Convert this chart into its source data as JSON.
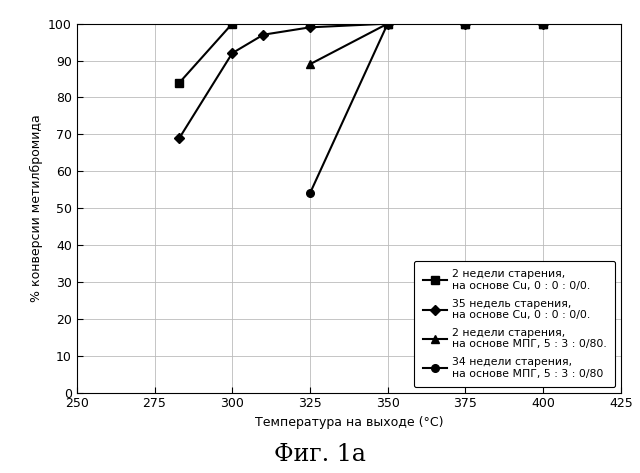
{
  "series": [
    {
      "label": "2 недели старения,\nна основе Cu, 0 : 0 : 0/0.",
      "x": [
        283,
        300,
        325,
        350,
        375,
        400
      ],
      "y": [
        84,
        100,
        100,
        100,
        100,
        100
      ],
      "marker": "s",
      "color": "#000000",
      "markersize": 5.5,
      "linewidth": 1.5
    },
    {
      "label": "35 недель старения,\nна основе Cu, 0 : 0 : 0/0.",
      "x": [
        283,
        300,
        310,
        325,
        350,
        375,
        400
      ],
      "y": [
        69,
        92,
        97,
        99,
        100,
        100,
        100
      ],
      "marker": "D",
      "color": "#000000",
      "markersize": 5.0,
      "linewidth": 1.5
    },
    {
      "label": "2 недели старения,\nна основе МПГ, 5 : 3 : 0/80.",
      "x": [
        325,
        350,
        375,
        400
      ],
      "y": [
        89,
        100,
        100,
        100
      ],
      "marker": "^",
      "color": "#000000",
      "markersize": 6.0,
      "linewidth": 1.5
    },
    {
      "label": "34 недели старения,\nна основе МПГ, 5 : 3 : 0/80",
      "x": [
        325,
        350,
        375,
        400
      ],
      "y": [
        54,
        100,
        100,
        100
      ],
      "marker": "o",
      "color": "#000000",
      "markersize": 5.5,
      "linewidth": 1.5
    }
  ],
  "xlabel": "Температура на выходе (°C)",
  "ylabel": "% конверсии метилбромида",
  "xlim": [
    250,
    425
  ],
  "ylim": [
    0,
    100
  ],
  "xticks": [
    250,
    275,
    300,
    325,
    350,
    375,
    400,
    425
  ],
  "yticks": [
    0,
    10,
    20,
    30,
    40,
    50,
    60,
    70,
    80,
    90,
    100
  ],
  "title_fig": "Фиг. 1а",
  "background_color": "#ffffff",
  "grid_color": "#bbbbbb"
}
